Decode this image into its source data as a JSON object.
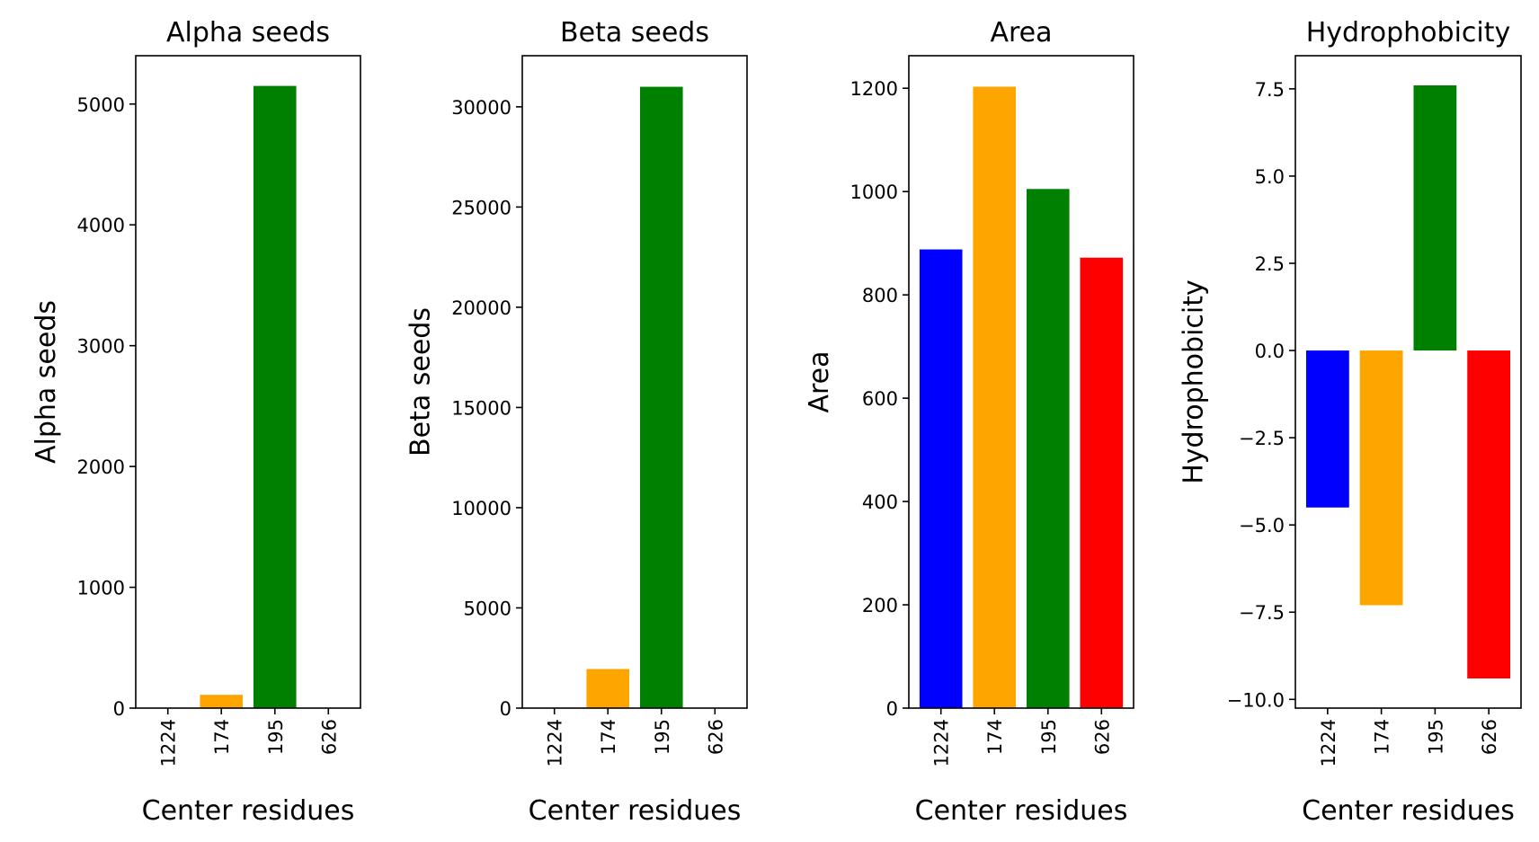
{
  "chart_data": [
    {
      "type": "bar",
      "title": "Alpha seeds",
      "xlabel": "Center residues",
      "ylabel": "Alpha seeds",
      "categories": [
        "1224",
        "174",
        "195",
        "626"
      ],
      "values": [
        0,
        110,
        5150,
        0
      ],
      "colors": [
        "#0000ff",
        "#ffa500",
        "#008000",
        "#ff0000"
      ],
      "ylim": [
        0,
        5400
      ],
      "yticks": [
        0,
        1000,
        2000,
        3000,
        4000,
        5000
      ],
      "ytick_labels": [
        "0",
        "1000",
        "2000",
        "3000",
        "4000",
        "5000"
      ],
      "grid": false
    },
    {
      "type": "bar",
      "title": "Beta seeds",
      "xlabel": "Center residues",
      "ylabel": "Beta seeds",
      "categories": [
        "1224",
        "174",
        "195",
        "626"
      ],
      "values": [
        0,
        1950,
        31000,
        0
      ],
      "colors": [
        "#0000ff",
        "#ffa500",
        "#008000",
        "#ff0000"
      ],
      "ylim": [
        0,
        32550
      ],
      "yticks": [
        0,
        5000,
        10000,
        15000,
        20000,
        25000,
        30000
      ],
      "ytick_labels": [
        "0",
        "5000",
        "10000",
        "15000",
        "20000",
        "25000",
        "30000"
      ],
      "grid": false
    },
    {
      "type": "bar",
      "title": "Area",
      "xlabel": "Center residues",
      "ylabel": "Area",
      "categories": [
        "1224",
        "174",
        "195",
        "626"
      ],
      "values": [
        888,
        1203,
        1005,
        872
      ],
      "colors": [
        "#0000ff",
        "#ffa500",
        "#008000",
        "#ff0000"
      ],
      "ylim": [
        0,
        1263
      ],
      "yticks": [
        0,
        200,
        400,
        600,
        800,
        1000,
        1200
      ],
      "ytick_labels": [
        "0",
        "200",
        "400",
        "600",
        "800",
        "1000",
        "1200"
      ],
      "grid": false
    },
    {
      "type": "bar",
      "title": "Hydrophobicity",
      "xlabel": "Center residues",
      "ylabel": "Hydrophobicity",
      "categories": [
        "1224",
        "174",
        "195",
        "626"
      ],
      "values": [
        -4.5,
        -7.3,
        7.6,
        -9.4
      ],
      "colors": [
        "#0000ff",
        "#ffa500",
        "#008000",
        "#ff0000"
      ],
      "ylim": [
        -10.25,
        8.45
      ],
      "yticks": [
        -10,
        -7.5,
        -5,
        -2.5,
        0,
        2.5,
        5,
        7.5
      ],
      "ytick_labels": [
        "−10.0",
        "−7.5",
        "−5.0",
        "−2.5",
        "0.0",
        "2.5",
        "5.0",
        "7.5"
      ],
      "grid": false
    }
  ]
}
